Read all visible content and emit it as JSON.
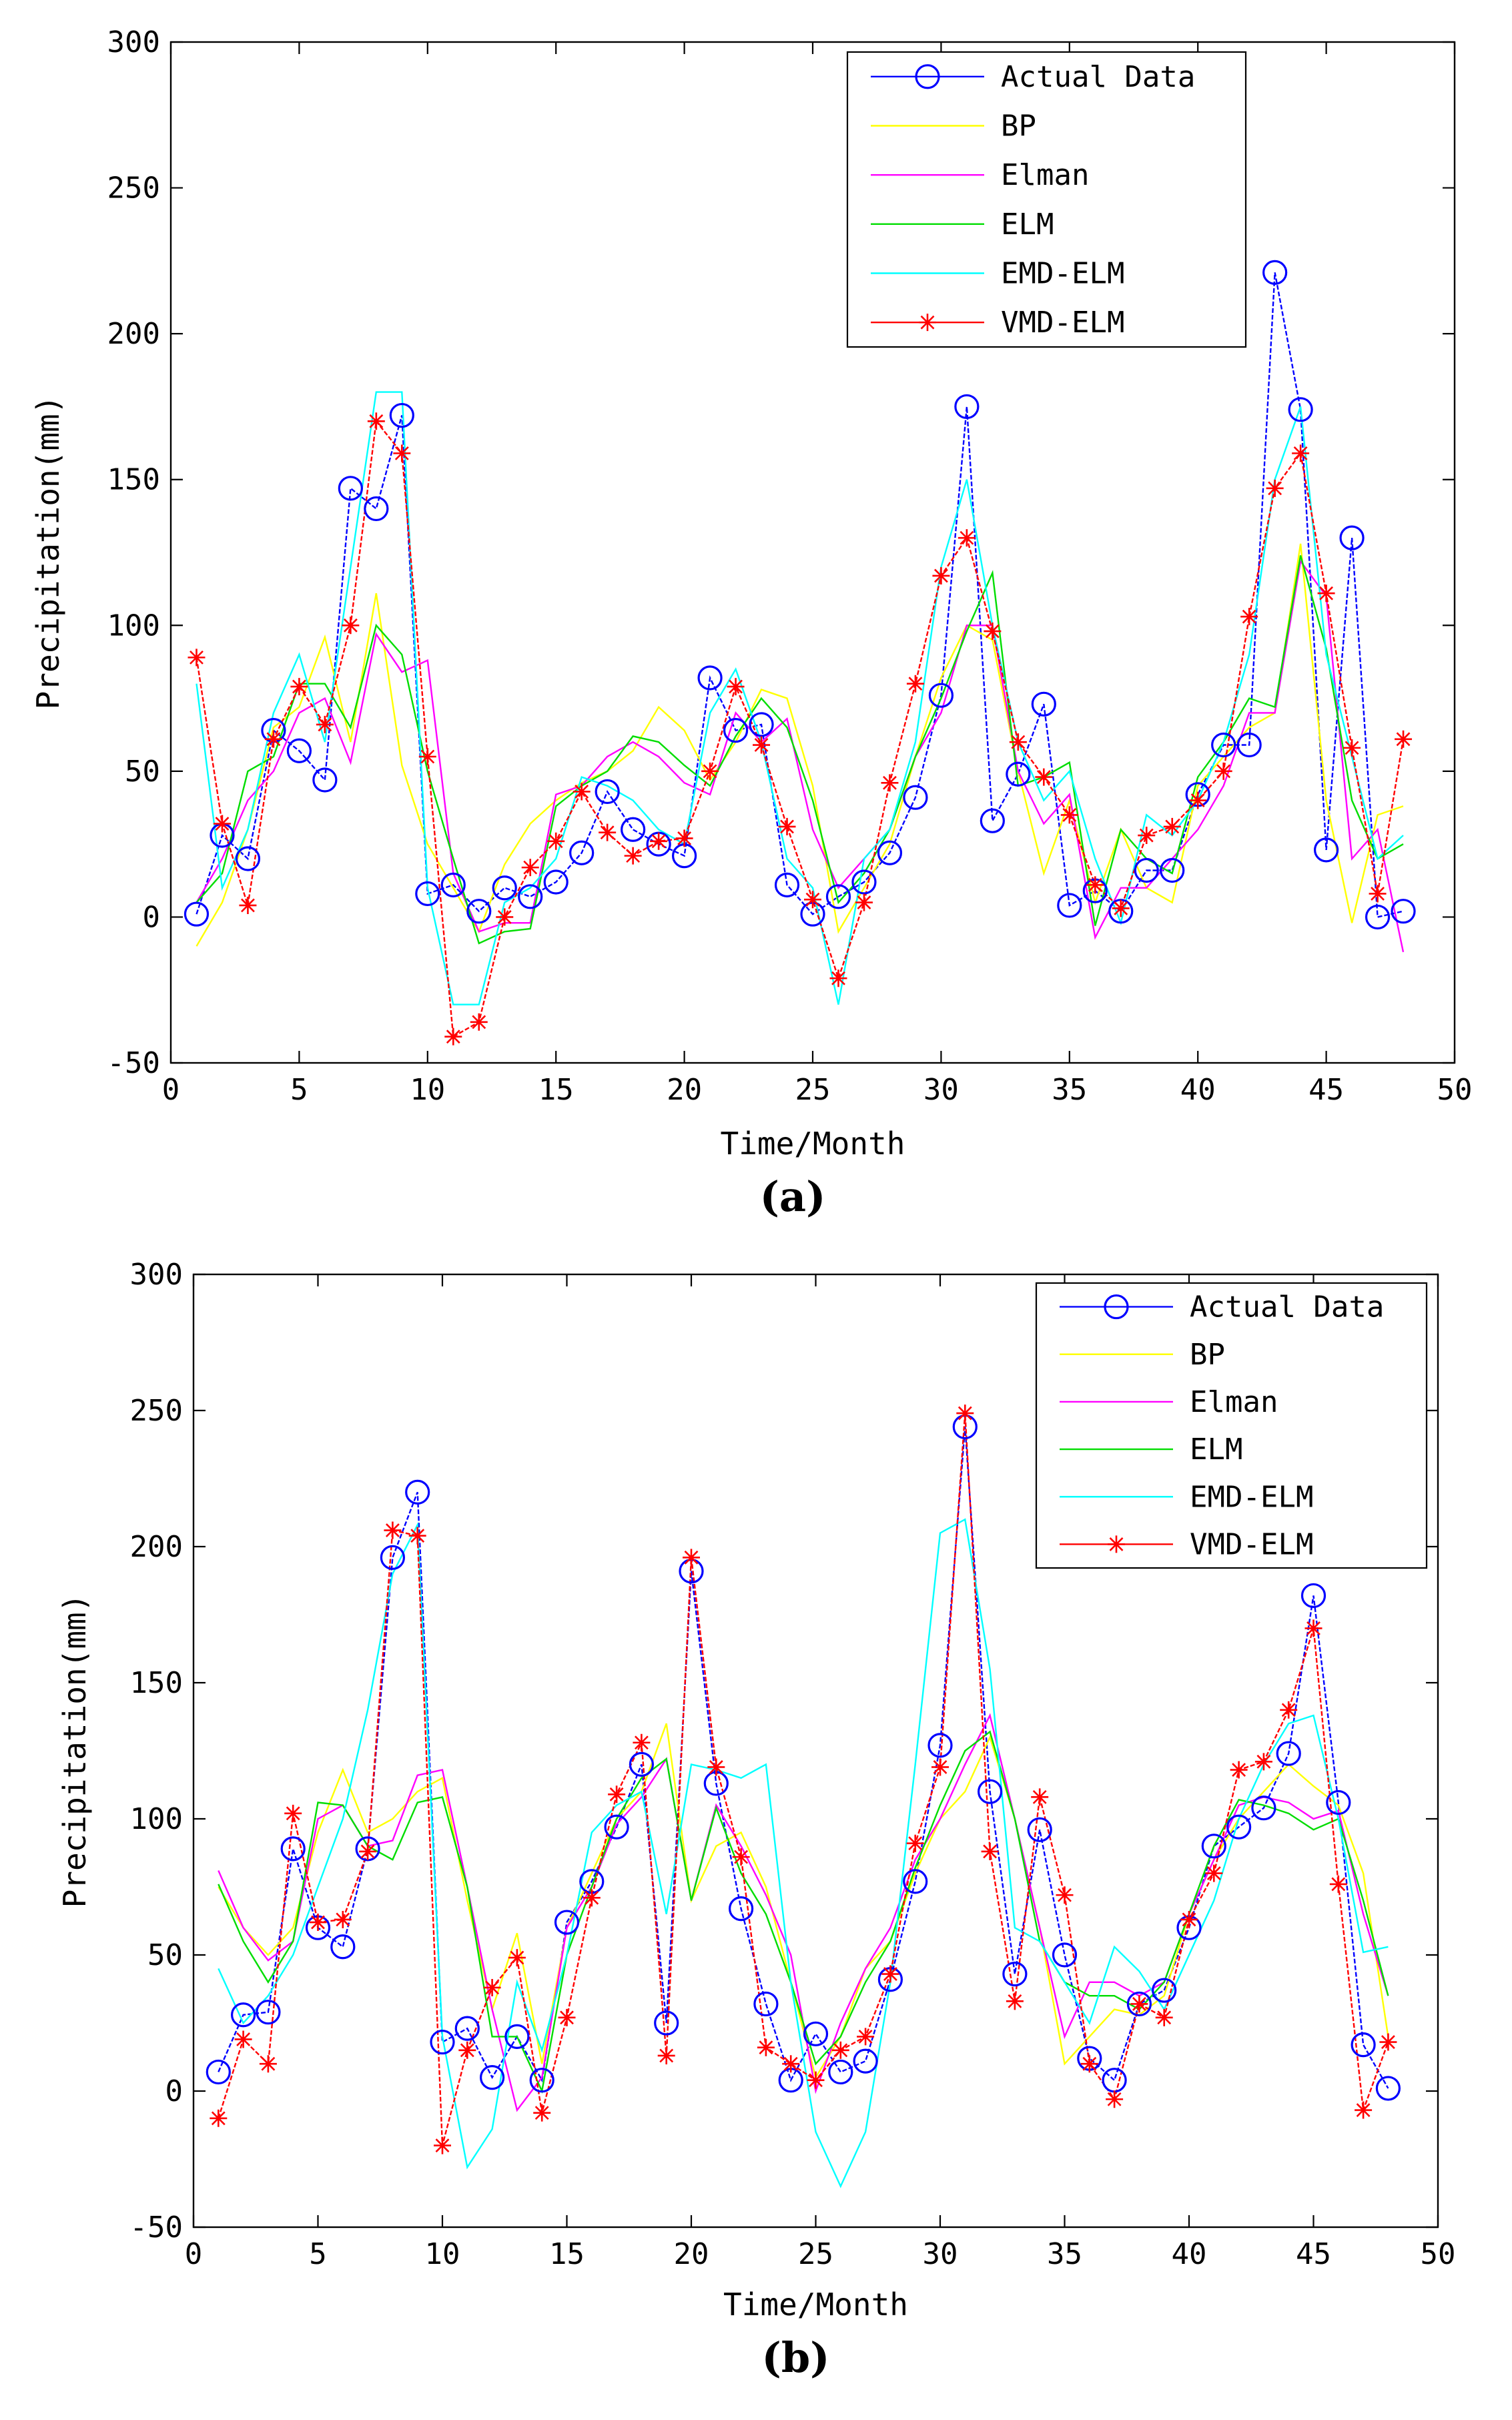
{
  "colors": {
    "actual": "#0000ff",
    "bp": "#ffff00",
    "elman": "#ff00ff",
    "elm": "#00dd00",
    "emd": "#00ffff",
    "vmd": "#ff0000"
  },
  "chart_data": [
    {
      "type": "line",
      "panel_label": "(a)",
      "title": "",
      "xlabel": "Time/Month",
      "ylabel": "Precipitation(mm)",
      "xlim": [
        0,
        50
      ],
      "ylim": [
        -50,
        300
      ],
      "xticks": [
        0,
        5,
        10,
        15,
        20,
        25,
        30,
        35,
        40,
        45,
        50
      ],
      "yticks": [
        -50,
        0,
        50,
        100,
        150,
        200,
        250,
        300
      ],
      "legend": "top-right",
      "x": [
        1,
        2,
        3,
        4,
        5,
        6,
        7,
        8,
        9,
        10,
        11,
        12,
        13,
        14,
        15,
        16,
        17,
        18,
        19,
        20,
        21,
        22,
        23,
        24,
        25,
        26,
        27,
        28,
        29,
        30,
        31,
        32,
        33,
        34,
        35,
        36,
        37,
        38,
        39,
        40,
        41,
        42,
        43,
        44,
        45,
        46,
        47,
        48
      ],
      "series": [
        {
          "name": "Actual Data",
          "key": "actual",
          "marker": "circle",
          "values": [
            1,
            28,
            20,
            64,
            57,
            47,
            147,
            140,
            172,
            8,
            11,
            2,
            10,
            7,
            12,
            22,
            43,
            30,
            25,
            21,
            82,
            64,
            66,
            11,
            1,
            7,
            12,
            22,
            41,
            76,
            175,
            33,
            49,
            73,
            4,
            9,
            2,
            16,
            16,
            42,
            59,
            59,
            221,
            174,
            23,
            130,
            0,
            2
          ]
        },
        {
          "name": "BP",
          "key": "bp",
          "marker": "none",
          "values": [
            -10,
            5,
            30,
            65,
            72,
            96,
            60,
            111,
            52,
            25,
            10,
            -5,
            18,
            32,
            40,
            46,
            50,
            57,
            72,
            64,
            47,
            60,
            78,
            75,
            45,
            -5,
            10,
            25,
            55,
            82,
            100,
            95,
            50,
            15,
            40,
            5,
            30,
            10,
            5,
            45,
            55,
            65,
            70,
            128,
            40,
            -2,
            35,
            38
          ]
        },
        {
          "name": "Elman",
          "key": "elman",
          "marker": "none",
          "values": [
            5,
            20,
            40,
            50,
            70,
            75,
            53,
            97,
            84,
            88,
            15,
            -5,
            -2,
            -2,
            42,
            45,
            55,
            60,
            55,
            46,
            42,
            70,
            60,
            68,
            30,
            10,
            20,
            30,
            55,
            70,
            100,
            100,
            50,
            32,
            42,
            -7,
            10,
            10,
            20,
            30,
            45,
            70,
            70,
            122,
            110,
            20,
            30,
            -12
          ]
        },
        {
          "name": "ELM",
          "key": "elm",
          "marker": "none",
          "values": [
            5,
            15,
            50,
            55,
            80,
            80,
            65,
            100,
            90,
            50,
            20,
            -9,
            -5,
            -4,
            38,
            45,
            50,
            62,
            60,
            52,
            45,
            62,
            75,
            65,
            40,
            5,
            15,
            30,
            55,
            75,
            98,
            118,
            45,
            48,
            53,
            -3,
            30,
            20,
            15,
            48,
            60,
            75,
            72,
            124,
            92,
            40,
            20,
            25
          ]
        },
        {
          "name": "EMD-ELM",
          "key": "emd",
          "marker": "none",
          "values": [
            80,
            10,
            30,
            70,
            90,
            60,
            120,
            180,
            180,
            10,
            -30,
            -30,
            5,
            10,
            20,
            48,
            45,
            40,
            30,
            25,
            70,
            85,
            60,
            20,
            10,
            -30,
            20,
            30,
            60,
            120,
            150,
            100,
            60,
            40,
            50,
            20,
            -2,
            35,
            28,
            40,
            60,
            90,
            150,
            175,
            90,
            55,
            20,
            28
          ]
        },
        {
          "name": "VMD-ELM",
          "key": "vmd",
          "marker": "star",
          "values": [
            89,
            32,
            4,
            61,
            79,
            66,
            100,
            170,
            159,
            55,
            -41,
            -36,
            0,
            17,
            26,
            43,
            29,
            21,
            26,
            27,
            50,
            79,
            59,
            31,
            6,
            -21,
            5,
            46,
            80,
            117,
            130,
            98,
            60,
            48,
            35,
            11,
            3,
            28,
            31,
            40,
            50,
            103,
            147,
            159,
            111,
            58,
            8,
            61
          ]
        }
      ]
    },
    {
      "type": "line",
      "panel_label": "(b)",
      "title": "",
      "xlabel": "Time/Month",
      "ylabel": "Precipitation(mm)",
      "xlim": [
        0,
        50
      ],
      "ylim": [
        -50,
        300
      ],
      "xticks": [
        0,
        5,
        10,
        15,
        20,
        25,
        30,
        35,
        40,
        45,
        50
      ],
      "yticks": [
        -50,
        0,
        50,
        100,
        150,
        200,
        250,
        300
      ],
      "legend": "top-right",
      "x": [
        1,
        2,
        3,
        4,
        5,
        6,
        7,
        8,
        9,
        10,
        11,
        12,
        13,
        14,
        15,
        16,
        17,
        18,
        19,
        20,
        21,
        22,
        23,
        24,
        25,
        26,
        27,
        28,
        29,
        30,
        31,
        32,
        33,
        34,
        35,
        36,
        37,
        38,
        39,
        40,
        41,
        42,
        43,
        44,
        45,
        46,
        47,
        48
      ],
      "series": [
        {
          "name": "Actual Data",
          "key": "actual",
          "marker": "circle",
          "values": [
            7,
            28,
            29,
            89,
            60,
            53,
            89,
            196,
            220,
            18,
            23,
            5,
            20,
            4,
            62,
            77,
            97,
            120,
            25,
            191,
            113,
            67,
            32,
            4,
            21,
            7,
            11,
            41,
            77,
            127,
            244,
            110,
            43,
            96,
            50,
            12,
            4,
            32,
            37,
            60,
            90,
            97,
            104,
            124,
            182,
            106,
            17,
            1
          ]
        },
        {
          "name": "BP",
          "key": "bp",
          "marker": "none",
          "values": [
            75,
            60,
            50,
            60,
            95,
            118,
            95,
            100,
            110,
            115,
            70,
            30,
            58,
            10,
            60,
            80,
            100,
            110,
            135,
            70,
            90,
            95,
            75,
            40,
            5,
            20,
            45,
            55,
            80,
            100,
            110,
            130,
            100,
            60,
            10,
            20,
            30,
            28,
            35,
            65,
            85,
            100,
            110,
            120,
            112,
            105,
            80,
            20
          ]
        },
        {
          "name": "Elman",
          "key": "elman",
          "marker": "none",
          "values": [
            81,
            60,
            48,
            55,
            100,
            105,
            90,
            92,
            116,
            118,
            75,
            30,
            -7,
            5,
            60,
            75,
            98,
            108,
            122,
            70,
            105,
            90,
            72,
            50,
            0,
            25,
            45,
            60,
            85,
            100,
            120,
            138,
            100,
            60,
            20,
            40,
            40,
            35,
            40,
            65,
            85,
            105,
            108,
            106,
            100,
            103,
            65,
            35
          ]
        },
        {
          "name": "ELM",
          "key": "elm",
          "marker": "none",
          "values": [
            76,
            55,
            40,
            55,
            106,
            105,
            90,
            85,
            106,
            108,
            75,
            20,
            20,
            0,
            50,
            75,
            100,
            115,
            122,
            70,
            104,
            80,
            65,
            40,
            10,
            20,
            40,
            55,
            82,
            105,
            125,
            132,
            100,
            55,
            40,
            35,
            35,
            30,
            40,
            65,
            90,
            107,
            105,
            102,
            96,
            100,
            70,
            35
          ]
        },
        {
          "name": "EMD-ELM",
          "key": "emd",
          "marker": "none",
          "values": [
            45,
            25,
            35,
            50,
            75,
            100,
            140,
            190,
            208,
            20,
            -28,
            -14,
            40,
            15,
            50,
            95,
            105,
            110,
            65,
            120,
            118,
            115,
            120,
            40,
            -15,
            -35,
            -15,
            40,
            120,
            205,
            210,
            155,
            60,
            55,
            40,
            25,
            53,
            44,
            30,
            50,
            70,
            100,
            120,
            135,
            138,
            100,
            51,
            53
          ]
        },
        {
          "name": "VMD-ELM",
          "key": "vmd",
          "marker": "star",
          "values": [
            -10,
            19,
            10,
            102,
            62,
            63,
            88,
            206,
            204,
            -20,
            15,
            38,
            49,
            -8,
            27,
            71,
            109,
            128,
            13,
            196,
            119,
            86,
            16,
            10,
            4,
            15,
            20,
            43,
            91,
            119,
            249,
            88,
            33,
            108,
            72,
            10,
            -3,
            32,
            27,
            63,
            80,
            118,
            121,
            140,
            170,
            76,
            -7,
            18
          ]
        }
      ]
    }
  ]
}
